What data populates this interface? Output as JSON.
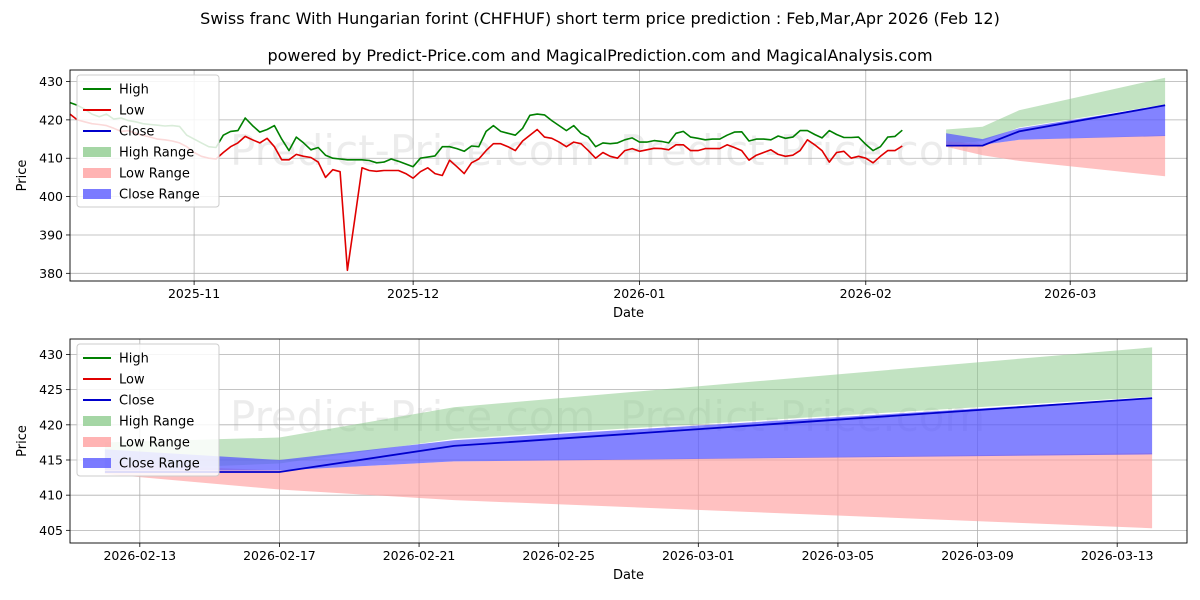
{
  "titles": {
    "line1": "Swiss franc With Hungarian forint (CHFHUF) short term price prediction : Feb,Mar,Apr 2026 (Feb 12)",
    "line2": "powered by Predict-Price.com and MagicalPrediction.com and MagicalAnalysis.com"
  },
  "watermark": "Predict-Price.com",
  "colors": {
    "high": "#008000",
    "low": "#e00000",
    "close": "#0000cc",
    "high_range": "#8fcc8f",
    "low_range": "#ffa0a0",
    "close_range": "#5a5aff"
  },
  "legend": [
    "High",
    "Low",
    "Close",
    "High Range",
    "Low Range",
    "Close Range"
  ],
  "chart_data": [
    {
      "type": "line",
      "title": "",
      "xlabel": "Date",
      "ylabel": "Price",
      "xlim": [
        "2025-10-15",
        "2026-03-17"
      ],
      "ylim": [
        378,
        433
      ],
      "yticks": [
        380,
        390,
        400,
        410,
        420,
        430
      ],
      "xticks": [
        {
          "date": "2025-11-01",
          "label": "2025-11"
        },
        {
          "date": "2025-12-01",
          "label": "2025-12"
        },
        {
          "date": "2026-01-01",
          "label": "2026-01"
        },
        {
          "date": "2026-02-01",
          "label": "2026-02"
        },
        {
          "date": "2026-03-01",
          "label": "2026-03"
        }
      ],
      "history_start": "2025-10-15",
      "high": [
        424.5,
        423.8,
        422.8,
        421.5,
        420.8,
        421.5,
        420.2,
        420.5,
        419.8,
        419.5,
        419.0,
        418.8,
        418.6,
        418.4,
        418.5,
        418.3,
        416.0,
        415.0,
        414.0,
        413.0,
        412.8,
        416.0,
        417.0,
        417.2,
        420.5,
        418.5,
        416.8,
        417.5,
        418.5,
        415.0,
        412.0,
        415.5,
        414.0,
        412.2,
        412.8,
        410.8,
        410.0,
        409.8,
        409.6,
        409.6,
        409.6,
        409.4,
        408.8,
        409.0,
        409.8,
        409.2,
        408.5,
        407.8,
        410.0,
        410.3,
        410.6,
        413.0,
        413.0,
        412.5,
        411.8,
        413.2,
        413.0,
        417.0,
        418.5,
        417.0,
        416.5,
        416.0,
        417.8,
        421.2,
        421.5,
        421.3,
        419.8,
        418.5,
        417.2,
        418.5,
        416.5,
        415.5,
        413.0,
        414.0,
        413.8,
        414.0,
        414.8,
        415.3,
        414.2,
        414.2,
        414.6,
        414.4,
        414.0,
        416.5,
        417.0,
        415.5,
        415.2,
        414.8,
        415.0,
        415.0,
        416.0,
        416.8,
        416.9,
        414.5,
        415.0,
        415.0,
        414.8,
        415.8,
        415.2,
        415.5,
        417.2,
        417.2,
        416.2,
        415.3,
        417.2,
        416.2,
        415.4,
        415.4,
        415.5,
        413.6,
        412.0,
        413.0,
        415.5,
        415.7,
        417.3
      ],
      "low": [
        421.5,
        420.0,
        419.5,
        419.0,
        418.8,
        418.5,
        417.8,
        417.0,
        417.2,
        416.5,
        416.0,
        415.5,
        415.0,
        414.8,
        414.5,
        414.0,
        413.0,
        411.5,
        410.5,
        410.0,
        409.8,
        411.5,
        413.0,
        414.0,
        415.7,
        414.8,
        414.0,
        415.2,
        413.0,
        409.6,
        409.6,
        411.0,
        410.5,
        410.2,
        409.0,
        405.0,
        407.0,
        406.5,
        380.8,
        394.0,
        407.5,
        406.8,
        406.6,
        406.8,
        406.8,
        406.8,
        406.0,
        404.8,
        406.5,
        407.5,
        406.0,
        405.5,
        409.5,
        407.8,
        406.0,
        408.8,
        409.8,
        412.0,
        413.8,
        413.8,
        413.0,
        412.0,
        414.5,
        416.0,
        417.5,
        415.5,
        415.2,
        414.2,
        413.0,
        414.2,
        413.8,
        412.0,
        410.0,
        411.5,
        410.5,
        410.0,
        412.0,
        412.5,
        411.8,
        412.2,
        412.6,
        412.5,
        412.2,
        413.5,
        413.5,
        412.0,
        412.0,
        412.5,
        412.5,
        412.5,
        413.5,
        412.8,
        412.0,
        409.5,
        410.8,
        411.5,
        412.2,
        411.0,
        410.5,
        410.8,
        412.0,
        414.8,
        413.5,
        412.0,
        409.0,
        411.5,
        411.8,
        410.0,
        410.5,
        410.0,
        408.8,
        410.5,
        412.0,
        412.0,
        413.2
      ],
      "forecast": {
        "dates": [
          "2026-02-12",
          "2026-02-17",
          "2026-02-22",
          "2026-03-14"
        ],
        "high_range_upper": [
          417.5,
          418.2,
          422.5,
          431.0
        ],
        "high_range_lower": [
          413.5,
          414.5,
          418.0,
          424.0
        ],
        "low_range_upper": [
          414.5,
          413.5,
          414.8,
          416.0
        ],
        "low_range_lower": [
          413.0,
          410.8,
          409.3,
          405.3
        ],
        "close": [
          413.3,
          413.3,
          417.0,
          423.8
        ],
        "close_range_upper": [
          416.5,
          415.0,
          417.8,
          423.8
        ],
        "close_range_lower": [
          413.5,
          413.5,
          414.8,
          415.8
        ]
      }
    },
    {
      "type": "area",
      "title": "",
      "xlabel": "Date",
      "ylabel": "Price",
      "xlim": [
        "2026-02-11",
        "2026-03-15"
      ],
      "ylim": [
        403.2,
        432.2
      ],
      "yticks": [
        405,
        410,
        415,
        420,
        425,
        430
      ],
      "xticks": [
        {
          "date": "2026-02-13",
          "label": "2026-02-13"
        },
        {
          "date": "2026-02-17",
          "label": "2026-02-17"
        },
        {
          "date": "2026-02-21",
          "label": "2026-02-21"
        },
        {
          "date": "2026-02-25",
          "label": "2026-02-25"
        },
        {
          "date": "2026-03-01",
          "label": "2026-03-01"
        },
        {
          "date": "2026-03-05",
          "label": "2026-03-05"
        },
        {
          "date": "2026-03-09",
          "label": "2026-03-09"
        },
        {
          "date": "2026-03-13",
          "label": "2026-03-13"
        }
      ],
      "forecast": {
        "dates": [
          "2026-02-12",
          "2026-02-17",
          "2026-02-22",
          "2026-03-14"
        ],
        "high_range_upper": [
          417.5,
          418.2,
          422.5,
          431.0
        ],
        "high_range_lower": [
          413.5,
          414.5,
          418.0,
          424.0
        ],
        "low_range_upper": [
          414.5,
          413.5,
          414.8,
          416.0
        ],
        "low_range_lower": [
          413.0,
          410.8,
          409.3,
          405.3
        ],
        "close": [
          413.3,
          413.3,
          417.0,
          423.8
        ],
        "close_range_upper": [
          416.5,
          415.0,
          417.8,
          423.8
        ],
        "close_range_lower": [
          413.5,
          413.5,
          414.8,
          415.8
        ]
      }
    }
  ]
}
